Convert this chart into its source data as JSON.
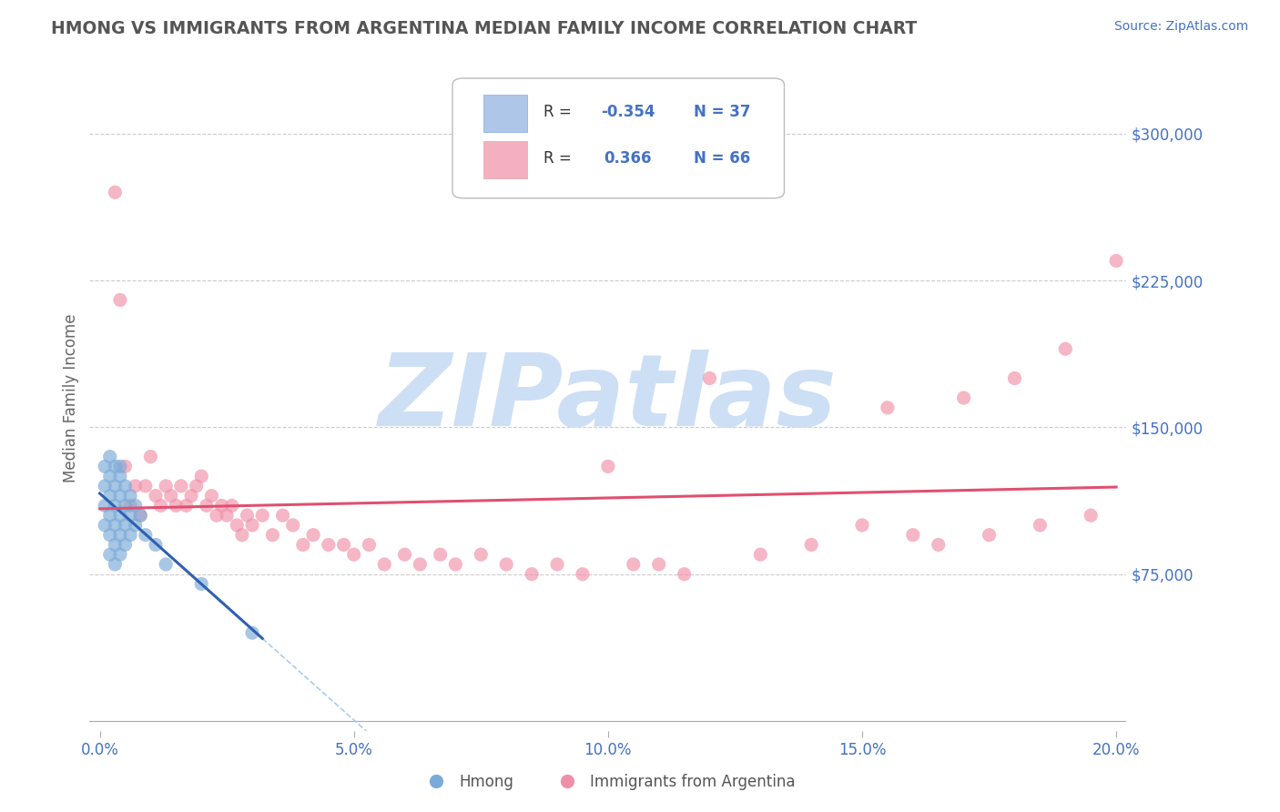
{
  "title": "HMONG VS IMMIGRANTS FROM ARGENTINA MEDIAN FAMILY INCOME CORRELATION CHART",
  "source": "Source: ZipAtlas.com",
  "ylabel": "Median Family Income",
  "xlim": [
    -0.002,
    0.202
  ],
  "ylim": [
    -5000,
    335000
  ],
  "ytick_vals": [
    75000,
    150000,
    225000,
    300000
  ],
  "ytick_labels": [
    "$75,000",
    "$150,000",
    "$225,000",
    "$300,000"
  ],
  "xtick_vals": [
    0.0,
    0.05,
    0.1,
    0.15,
    0.2
  ],
  "xtick_labels": [
    "0.0%",
    "5.0%",
    "10.0%",
    "15.0%",
    "20.0%"
  ],
  "background_color": "#ffffff",
  "grid_color": "#cccccc",
  "title_color": "#555555",
  "axis_tick_color": "#4472c4",
  "watermark_text": "ZIPatlas",
  "watermark_color": "#cddff5",
  "hmong_color": "#aec6e8",
  "argentina_color": "#f4afc0",
  "hmong_line_color": "#3060b0",
  "hmong_dash_color": "#aaccee",
  "argentina_line_color": "#e05070",
  "hmong_scatter_color": "#7aaad8",
  "argentina_scatter_color": "#f090a8",
  "legend_box_edge": "#aaaaaa",
  "legend_text_color": "#333333",
  "hmong_x": [
    0.001,
    0.001,
    0.001,
    0.001,
    0.002,
    0.002,
    0.002,
    0.002,
    0.002,
    0.002,
    0.003,
    0.003,
    0.003,
    0.003,
    0.003,
    0.003,
    0.004,
    0.004,
    0.004,
    0.004,
    0.004,
    0.004,
    0.005,
    0.005,
    0.005,
    0.005,
    0.006,
    0.006,
    0.006,
    0.007,
    0.007,
    0.008,
    0.009,
    0.011,
    0.013,
    0.02,
    0.03
  ],
  "hmong_y": [
    100000,
    110000,
    120000,
    130000,
    85000,
    95000,
    105000,
    115000,
    125000,
    135000,
    80000,
    90000,
    100000,
    110000,
    120000,
    130000,
    85000,
    95000,
    105000,
    115000,
    125000,
    130000,
    90000,
    100000,
    110000,
    120000,
    95000,
    105000,
    115000,
    100000,
    110000,
    105000,
    95000,
    90000,
    80000,
    70000,
    45000
  ],
  "argentina_x": [
    0.003,
    0.004,
    0.005,
    0.006,
    0.007,
    0.008,
    0.009,
    0.01,
    0.011,
    0.012,
    0.013,
    0.014,
    0.015,
    0.016,
    0.017,
    0.018,
    0.019,
    0.02,
    0.021,
    0.022,
    0.023,
    0.024,
    0.025,
    0.026,
    0.027,
    0.028,
    0.029,
    0.03,
    0.032,
    0.034,
    0.036,
    0.038,
    0.04,
    0.042,
    0.045,
    0.048,
    0.05,
    0.053,
    0.056,
    0.06,
    0.063,
    0.067,
    0.07,
    0.075,
    0.08,
    0.085,
    0.09,
    0.095,
    0.1,
    0.105,
    0.11,
    0.115,
    0.12,
    0.13,
    0.14,
    0.15,
    0.155,
    0.16,
    0.165,
    0.17,
    0.175,
    0.18,
    0.185,
    0.19,
    0.195,
    0.2
  ],
  "argentina_y": [
    270000,
    215000,
    130000,
    110000,
    120000,
    105000,
    120000,
    135000,
    115000,
    110000,
    120000,
    115000,
    110000,
    120000,
    110000,
    115000,
    120000,
    125000,
    110000,
    115000,
    105000,
    110000,
    105000,
    110000,
    100000,
    95000,
    105000,
    100000,
    105000,
    95000,
    105000,
    100000,
    90000,
    95000,
    90000,
    90000,
    85000,
    90000,
    80000,
    85000,
    80000,
    85000,
    80000,
    85000,
    80000,
    75000,
    80000,
    75000,
    130000,
    80000,
    80000,
    75000,
    175000,
    85000,
    90000,
    100000,
    160000,
    95000,
    90000,
    165000,
    95000,
    175000,
    100000,
    190000,
    105000,
    235000
  ]
}
